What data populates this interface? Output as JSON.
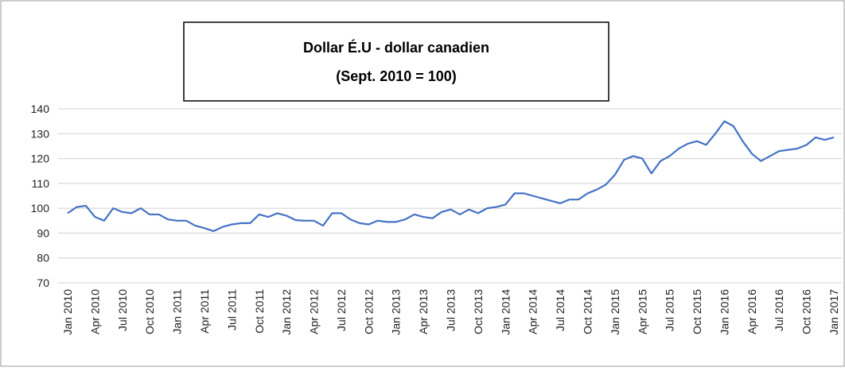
{
  "chart_data": {
    "type": "line",
    "title": "Dollar É.U - dollar canadien",
    "subtitle": "(Sept. 2010 = 100)",
    "categories": [
      "Jan 2010",
      null,
      null,
      "Apr 2010",
      null,
      null,
      "Jul 2010",
      null,
      null,
      "Oct 2010",
      null,
      null,
      "Jan 2011",
      null,
      null,
      "Apr 2011",
      null,
      null,
      "Jul 2011",
      null,
      null,
      "Oct 2011",
      null,
      null,
      "Jan 2012",
      null,
      null,
      "Apr 2012",
      null,
      null,
      "Jul 2012",
      null,
      null,
      "Oct 2012",
      null,
      null,
      "Jan 2013",
      null,
      null,
      "Apr 2013",
      null,
      null,
      "Jul 2013",
      null,
      null,
      "Oct 2013",
      null,
      null,
      "Jan 2014",
      null,
      null,
      "Apr 2014",
      null,
      null,
      "Jul 2014",
      null,
      null,
      "Oct 2014",
      null,
      null,
      "Jan 2015",
      null,
      null,
      "Apr 2015",
      null,
      null,
      "Jul 2015",
      null,
      null,
      "Oct 2015",
      null,
      null,
      "Jan 2016",
      null,
      null,
      "Apr 2016",
      null,
      null,
      "Jul 2016",
      null,
      null,
      "Oct 2016",
      null,
      null,
      "Jan 2017"
    ],
    "values": [
      98,
      100.5,
      101,
      96.5,
      95,
      100,
      98.5,
      98,
      100,
      97.5,
      97.5,
      95.5,
      95,
      95,
      93,
      92,
      90.8,
      92.5,
      93.5,
      94,
      94,
      97.5,
      96.5,
      98,
      97,
      95.2,
      95,
      95,
      93,
      98,
      98,
      95.5,
      94,
      93.5,
      95,
      94.5,
      94.5,
      95.5,
      97.5,
      96.5,
      96,
      98.5,
      99.5,
      97.5,
      99.5,
      98,
      100,
      100.5,
      101.5,
      106,
      106,
      105,
      104,
      103,
      102,
      103.5,
      103.5,
      106,
      107.5,
      109.5,
      113.5,
      119.5,
      121,
      120,
      114,
      119,
      121,
      124,
      126,
      127,
      125.5,
      130,
      135,
      133,
      127,
      122,
      119,
      121,
      123,
      123.5,
      124,
      125.5,
      128.5,
      127.5,
      128.5
    ],
    "color": "#4472c4",
    "ylim": [
      70,
      140
    ],
    "yticks": [
      70,
      80,
      90,
      100,
      110,
      120,
      130,
      140
    ],
    "grid": true
  }
}
